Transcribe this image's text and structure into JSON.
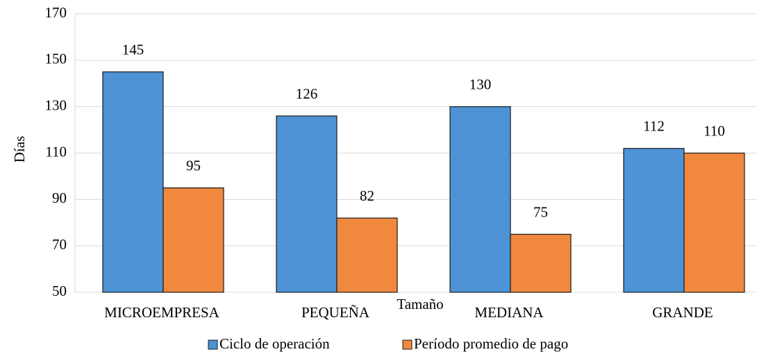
{
  "chart_data": {
    "type": "bar",
    "xlabel": "Tamaño",
    "ylabel": "Días",
    "categories": [
      "MICROEMPRESA",
      "PEQUEÑA",
      "MEDIANA",
      "GRANDE"
    ],
    "series": [
      {
        "name": "Ciclo de operación",
        "color": "#4d93d6",
        "values": [
          145,
          126,
          130,
          112
        ]
      },
      {
        "name": "Período promedio de pago",
        "color": "#f0883e",
        "values": [
          95,
          82,
          75,
          110
        ]
      }
    ],
    "ylim": [
      50,
      170
    ],
    "yticks": [
      50,
      70,
      90,
      110,
      130,
      150,
      170
    ],
    "grid": true,
    "legend": "bottom"
  }
}
